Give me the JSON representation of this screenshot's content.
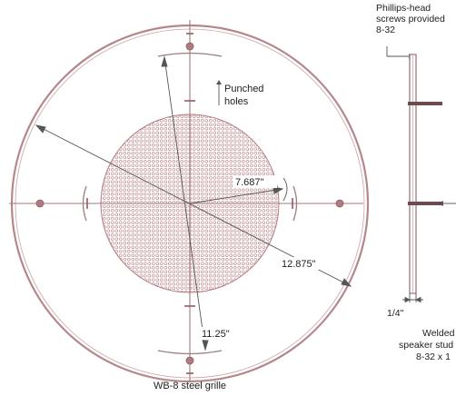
{
  "front_view": {
    "caption": "WB-8 steel grille",
    "punched_holes_label": [
      "Punched",
      "holes"
    ],
    "dimensions": {
      "hole_pattern_radius": "7.687\"",
      "outer_diameter": "12.875\"",
      "mounting_span": "11.25\""
    }
  },
  "side_view": {
    "screws_label": [
      "Phillips-head",
      "screws provided",
      "8-32"
    ],
    "thickness_label": "1/4\"",
    "stud_label": [
      "Welded",
      "speaker stud",
      "8-32 x 1"
    ]
  }
}
